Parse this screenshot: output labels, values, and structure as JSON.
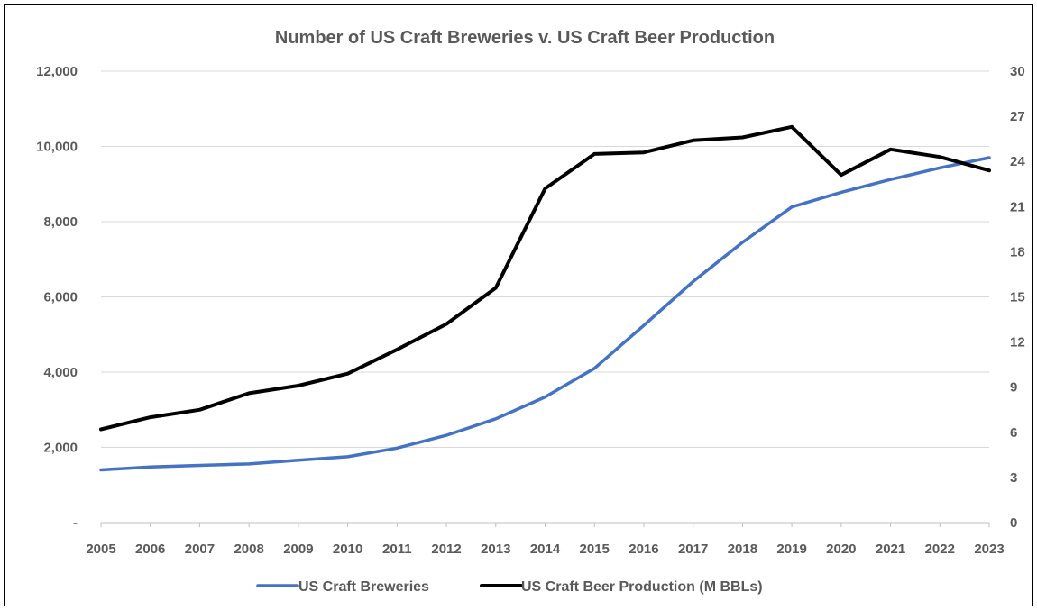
{
  "chart_data": {
    "type": "line",
    "title": "Number of US Craft Breweries v. US Craft Beer Production",
    "x": [
      2005,
      2006,
      2007,
      2008,
      2009,
      2010,
      2011,
      2012,
      2013,
      2014,
      2015,
      2016,
      2017,
      2018,
      2019,
      2020,
      2021,
      2022,
      2023
    ],
    "y_left": {
      "ylim": [
        0,
        12000
      ],
      "ticks": [
        0,
        2000,
        4000,
        6000,
        8000,
        10000,
        12000
      ],
      "tick_labels": [
        "-",
        "2,000",
        "4,000",
        "6,000",
        "8,000",
        "10,000",
        "12,000"
      ]
    },
    "y_right": {
      "ylim": [
        0,
        30
      ],
      "ticks": [
        0,
        3,
        6,
        9,
        12,
        15,
        18,
        21,
        24,
        27,
        30
      ],
      "tick_labels": [
        "0",
        "3",
        "6",
        "9",
        "12",
        "15",
        "18",
        "21",
        "24",
        "27",
        "30"
      ]
    },
    "series": [
      {
        "name": "US Craft Breweries",
        "axis": "left",
        "color": "#4472C4",
        "values": [
          1400,
          1480,
          1520,
          1560,
          1660,
          1750,
          1980,
          2320,
          2760,
          3340,
          4100,
          5240,
          6410,
          7450,
          8390,
          8780,
          9120,
          9430,
          9700
        ]
      },
      {
        "name": "US Craft Beer Production (M BBLs)",
        "axis": "right",
        "color": "#000000",
        "values": [
          6.2,
          7.0,
          7.5,
          8.6,
          9.1,
          9.9,
          11.5,
          13.2,
          15.6,
          22.2,
          24.5,
          24.6,
          25.4,
          25.6,
          26.3,
          23.1,
          24.8,
          24.3,
          23.4
        ]
      }
    ],
    "grid": "horizontal",
    "legend_position": "bottom"
  }
}
